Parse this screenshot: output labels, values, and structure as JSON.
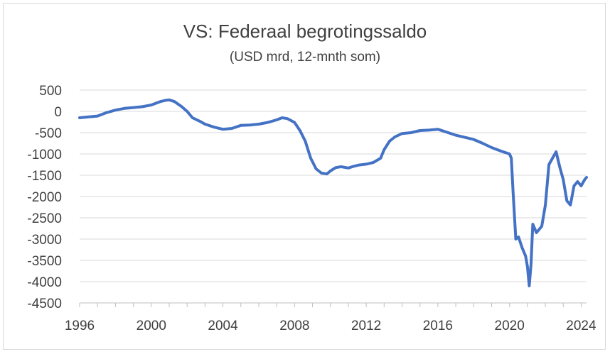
{
  "chart_data": {
    "type": "line",
    "title": "VS: Federaal begrotingssaldo",
    "subtitle": "(USD mrd, 12-mnth som)",
    "xlabel": "",
    "ylabel": "",
    "xlim": [
      1996,
      2024.3
    ],
    "ylim": [
      -4500,
      500
    ],
    "x_ticks": [
      "1996",
      "2000",
      "2004",
      "2008",
      "2012",
      "2016",
      "2020",
      "2024"
    ],
    "y_ticks": [
      "500",
      "0",
      "-500",
      "-1000",
      "-1500",
      "-2000",
      "-2500",
      "-3000",
      "-3500",
      "-4000",
      "-4500"
    ],
    "grid": "horizontal",
    "line_color": "#4472c4",
    "series": [
      {
        "x": [
          1996.0,
          1996.5,
          1997.0,
          1997.5,
          1998.0,
          1998.5,
          1999.0,
          1999.5,
          2000.0,
          2000.5,
          2000.8,
          2001.0,
          2001.3,
          2001.7,
          2002.0,
          2002.3,
          2002.7,
          2003.0,
          2003.5,
          2004.0,
          2004.5,
          2005.0,
          2005.5,
          2006.0,
          2006.5,
          2007.0,
          2007.3,
          2007.6,
          2008.0,
          2008.3,
          2008.6,
          2008.9,
          2009.2,
          2009.5,
          2009.8,
          2010.0,
          2010.3,
          2010.6,
          2011.0,
          2011.3,
          2011.6,
          2012.0,
          2012.4,
          2012.8,
          2013.0,
          2013.3,
          2013.6,
          2014.0,
          2014.5,
          2015.0,
          2015.5,
          2016.0,
          2016.5,
          2017.0,
          2017.5,
          2018.0,
          2018.5,
          2019.0,
          2019.5,
          2020.0,
          2020.1,
          2020.2,
          2020.35,
          2020.5,
          2020.7,
          2020.9,
          2021.0,
          2021.1,
          2021.2,
          2021.3,
          2021.5,
          2021.8,
          2022.0,
          2022.2,
          2022.4,
          2022.6,
          2022.8,
          2023.0,
          2023.2,
          2023.4,
          2023.6,
          2023.8,
          2024.0,
          2024.2,
          2024.3
        ],
        "values": [
          -150,
          -130,
          -110,
          -30,
          30,
          70,
          90,
          110,
          150,
          230,
          260,
          270,
          230,
          110,
          0,
          -150,
          -230,
          -300,
          -370,
          -420,
          -400,
          -330,
          -320,
          -300,
          -260,
          -200,
          -150,
          -170,
          -260,
          -450,
          -700,
          -1100,
          -1350,
          -1450,
          -1470,
          -1400,
          -1320,
          -1300,
          -1330,
          -1290,
          -1260,
          -1240,
          -1200,
          -1100,
          -900,
          -700,
          -600,
          -520,
          -500,
          -450,
          -440,
          -420,
          -490,
          -560,
          -610,
          -660,
          -750,
          -850,
          -930,
          -1000,
          -1100,
          -1900,
          -3000,
          -2950,
          -3200,
          -3400,
          -3650,
          -4100,
          -3600,
          -2650,
          -2850,
          -2700,
          -2200,
          -1250,
          -1100,
          -950,
          -1300,
          -1600,
          -2100,
          -2200,
          -1750,
          -1650,
          -1750,
          -1600,
          -1550
        ]
      }
    ]
  }
}
